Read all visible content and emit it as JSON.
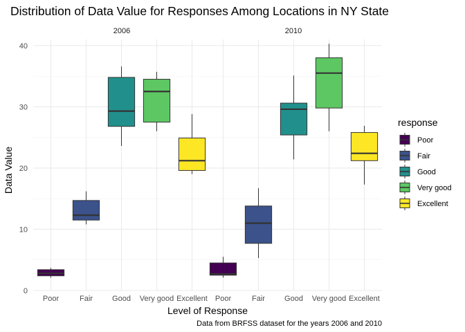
{
  "chart_data": {
    "type": "boxplot",
    "title": "Distribution of Data Value for Responses Among Locations in NY State",
    "xlabel": "Level of Response",
    "ylabel": "Data Value",
    "caption": "Data from BRFSS dataset for the years 2006 and 2010",
    "ylim": [
      0,
      41
    ],
    "yticks": [
      0,
      10,
      20,
      30,
      40
    ],
    "categories": [
      "Poor",
      "Fair",
      "Good",
      "Very good",
      "Excellent"
    ],
    "colors": {
      "Poor": "#440154",
      "Fair": "#3B528B",
      "Good": "#21908C",
      "Very good": "#5DC863",
      "Excellent": "#FDE725"
    },
    "legend": {
      "title": "response",
      "position": "right",
      "items": [
        "Poor",
        "Fair",
        "Good",
        "Very good",
        "Excellent"
      ]
    },
    "panels": [
      {
        "label": "2006",
        "boxes": [
          {
            "category": "Poor",
            "min": 2.1,
            "q1": 2.4,
            "median": 2.8,
            "q3": 3.4,
            "max": 3.7
          },
          {
            "category": "Fair",
            "min": 10.8,
            "q1": 11.5,
            "median": 12.3,
            "q3": 14.7,
            "max": 16.2
          },
          {
            "category": "Good",
            "min": 23.6,
            "q1": 26.8,
            "median": 29.3,
            "q3": 34.8,
            "max": 36.6
          },
          {
            "category": "Very good",
            "min": 26.0,
            "q1": 27.5,
            "median": 32.5,
            "q3": 34.5,
            "max": 35.7
          },
          {
            "category": "Excellent",
            "min": 19.0,
            "q1": 19.6,
            "median": 21.2,
            "q3": 24.9,
            "max": 28.8
          }
        ]
      },
      {
        "label": "2010",
        "boxes": [
          {
            "category": "Poor",
            "min": 2.1,
            "q1": 2.5,
            "median": 2.7,
            "q3": 4.5,
            "max": 5.5
          },
          {
            "category": "Fair",
            "min": 5.3,
            "q1": 7.7,
            "median": 11.0,
            "q3": 13.8,
            "max": 16.7
          },
          {
            "category": "Good",
            "min": 21.4,
            "q1": 25.4,
            "median": 29.6,
            "q3": 30.6,
            "max": 35.1
          },
          {
            "category": "Very good",
            "min": 26.0,
            "q1": 29.8,
            "median": 35.5,
            "q3": 38.0,
            "max": 40.3
          },
          {
            "category": "Excellent",
            "min": 17.3,
            "q1": 21.2,
            "median": 22.4,
            "q3": 25.8,
            "max": 26.9
          }
        ]
      }
    ]
  }
}
